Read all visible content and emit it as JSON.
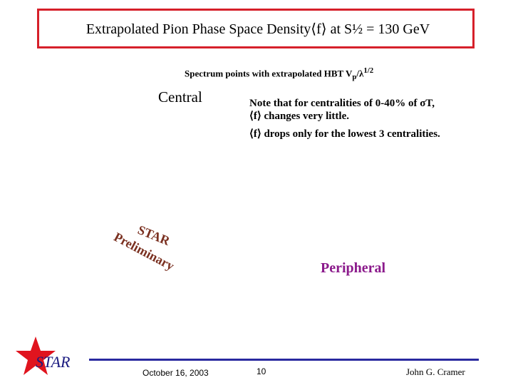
{
  "header": {
    "title": "Extrapolated Pion Phase Space Density⟨f⟩ at S½ = 130 GeV"
  },
  "subtitle": {
    "parts": [
      "Spectrum points with extrapolated HBT V",
      "p",
      "/λ",
      "1/2"
    ]
  },
  "labels": {
    "central": "Central",
    "peripheral": "Peripheral"
  },
  "note": {
    "lines": [
      "Note that for centralities of 0-40% of σT,",
      "⟨f⟩ changes very little.",
      "⟨f⟩ drops only for the lowest 3 centralities."
    ]
  },
  "watermark": {
    "top": "STAR",
    "bottom": "Preliminary"
  },
  "footer": {
    "logo": "STAR",
    "date": "October 16, 2003",
    "page": "10",
    "author": "John G. Cramer"
  }
}
